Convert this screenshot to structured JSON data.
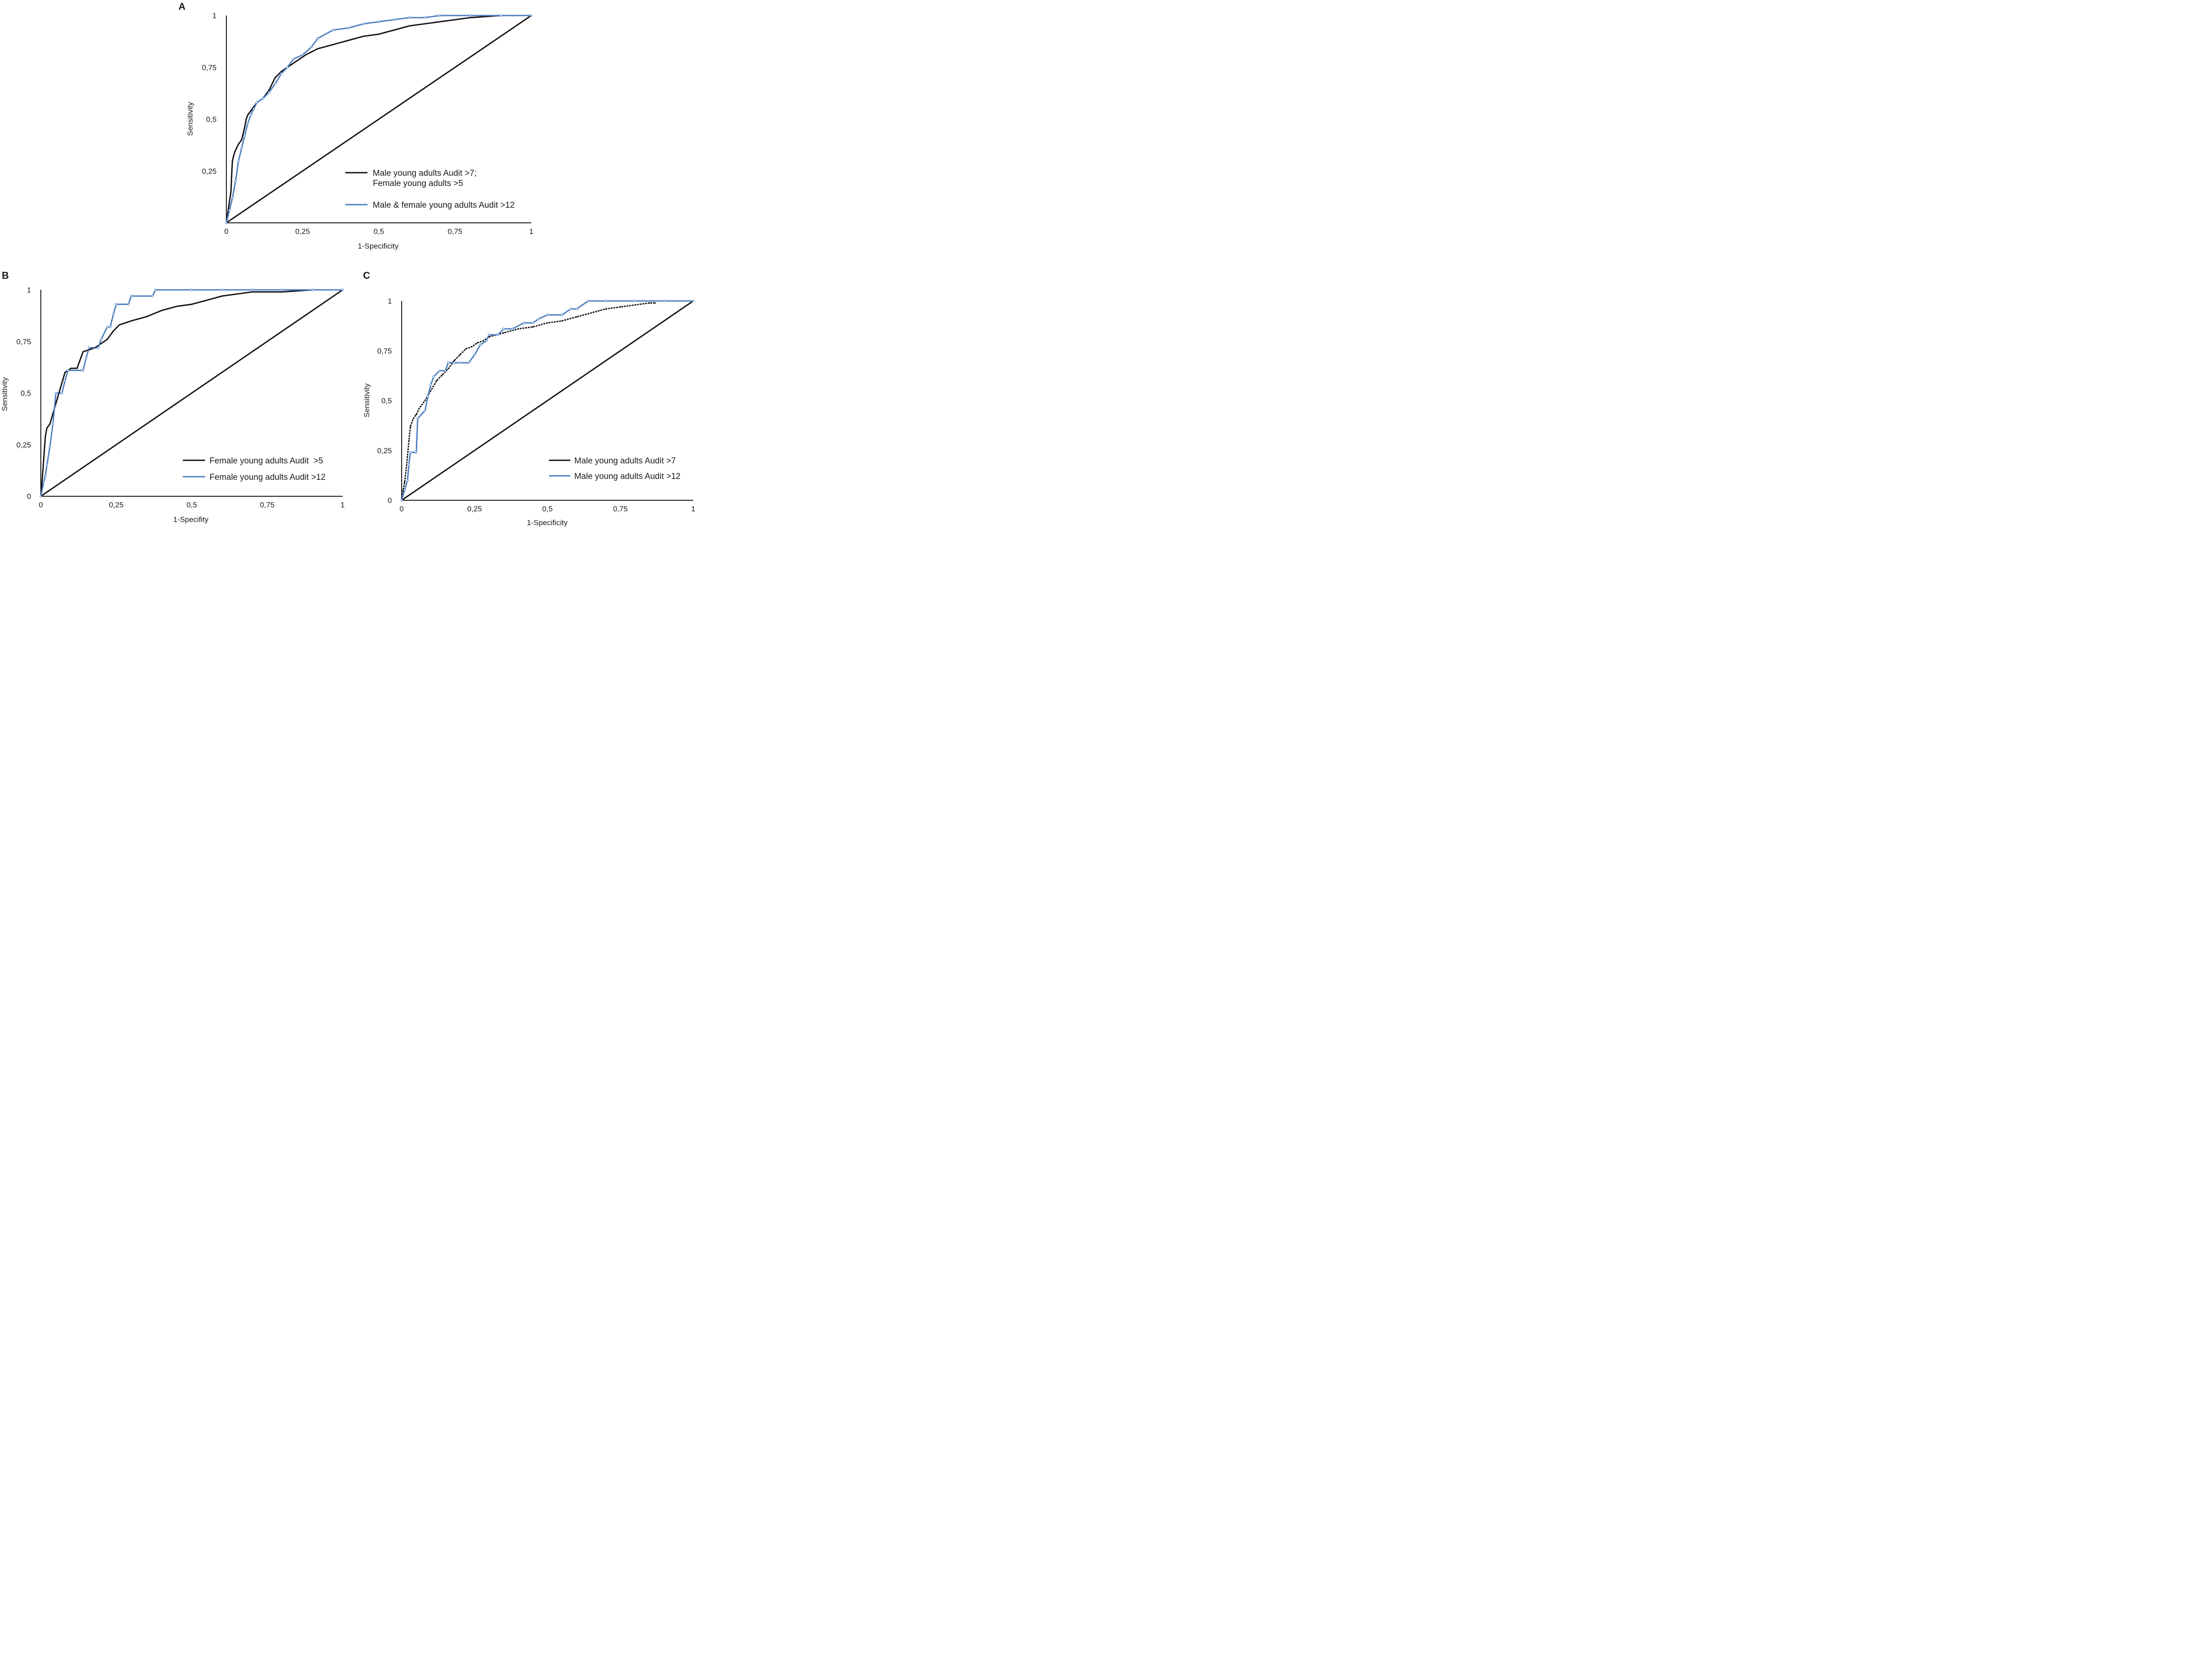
{
  "colors": {
    "series1": "#111111",
    "series2": "#4a7dbf",
    "axis": "#111111",
    "diagonal": "#111111"
  },
  "chart_data": [
    {
      "type": "line",
      "panel": "A",
      "xlabel": "1-Specificity",
      "ylabel": "Sensitivity",
      "xlim": [
        0,
        1
      ],
      "ylim": [
        0,
        1
      ],
      "xticks": [
        {
          "v": 0,
          "label": "0"
        },
        {
          "v": 0.25,
          "label": "0,25"
        },
        {
          "v": 0.5,
          "label": "0,5"
        },
        {
          "v": 0.75,
          "label": "0,75"
        },
        {
          "v": 1,
          "label": "1"
        }
      ],
      "yticks": [
        {
          "v": 0.25,
          "label": "0,25"
        },
        {
          "v": 0.5,
          "label": "0,5"
        },
        {
          "v": 0.75,
          "label": "0,75"
        },
        {
          "v": 1,
          "label": "1"
        }
      ],
      "legend_position": "bottom-right",
      "series": [
        {
          "name": "Male young adults Audit >7;",
          "name_line2": "Female young adults >5",
          "color": "#111111",
          "x": [
            0,
            0.005,
            0.01,
            0.015,
            0.018,
            0.02,
            0.025,
            0.03,
            0.04,
            0.05,
            0.055,
            0.06,
            0.065,
            0.07,
            0.08,
            0.09,
            0.1,
            0.12,
            0.14,
            0.16,
            0.18,
            0.2,
            0.22,
            0.24,
            0.26,
            0.3,
            0.35,
            0.4,
            0.45,
            0.5,
            0.55,
            0.6,
            0.65,
            0.7,
            0.8,
            0.9,
            1.0
          ],
          "y": [
            0,
            0.05,
            0.1,
            0.15,
            0.25,
            0.3,
            0.33,
            0.35,
            0.38,
            0.4,
            0.43,
            0.46,
            0.5,
            0.52,
            0.54,
            0.56,
            0.58,
            0.6,
            0.64,
            0.7,
            0.73,
            0.75,
            0.77,
            0.79,
            0.81,
            0.84,
            0.86,
            0.88,
            0.9,
            0.91,
            0.93,
            0.95,
            0.96,
            0.97,
            0.99,
            1.0,
            1.0
          ]
        },
        {
          "name": "Male & female young adults Audit >12",
          "color": "#4a7dbf",
          "x": [
            0,
            0.01,
            0.02,
            0.03,
            0.04,
            0.05,
            0.06,
            0.07,
            0.08,
            0.09,
            0.1,
            0.12,
            0.14,
            0.16,
            0.18,
            0.2,
            0.22,
            0.25,
            0.28,
            0.3,
            0.35,
            0.4,
            0.45,
            0.5,
            0.55,
            0.6,
            0.65,
            0.7,
            0.8,
            0.9,
            1.0
          ],
          "y": [
            0,
            0.06,
            0.12,
            0.2,
            0.3,
            0.36,
            0.42,
            0.48,
            0.52,
            0.55,
            0.58,
            0.6,
            0.63,
            0.67,
            0.72,
            0.75,
            0.79,
            0.81,
            0.85,
            0.89,
            0.93,
            0.94,
            0.96,
            0.97,
            0.98,
            0.99,
            0.99,
            1.0,
            1.0,
            1.0,
            1.0
          ]
        }
      ]
    },
    {
      "type": "line",
      "panel": "B",
      "xlabel": "1-Specifity",
      "ylabel": "Sensitivity",
      "xlim": [
        0,
        1
      ],
      "ylim": [
        0,
        1
      ],
      "xticks": [
        {
          "v": 0,
          "label": "0"
        },
        {
          "v": 0.25,
          "label": "0,25"
        },
        {
          "v": 0.5,
          "label": "0,5"
        },
        {
          "v": 0.75,
          "label": "0,75"
        },
        {
          "v": 1,
          "label": "1"
        }
      ],
      "yticks": [
        {
          "v": 0,
          "label": "0"
        },
        {
          "v": 0.25,
          "label": "0,25"
        },
        {
          "v": 0.5,
          "label": "0,5"
        },
        {
          "v": 0.75,
          "label": "0,75"
        },
        {
          "v": 1,
          "label": "1"
        }
      ],
      "legend_position": "bottom-right",
      "series": [
        {
          "name": "Female young adults Audit  >5",
          "color": "#111111",
          "x": [
            0,
            0.005,
            0.01,
            0.015,
            0.02,
            0.03,
            0.04,
            0.05,
            0.06,
            0.07,
            0.08,
            0.1,
            0.12,
            0.14,
            0.16,
            0.18,
            0.2,
            0.22,
            0.24,
            0.26,
            0.28,
            0.3,
            0.35,
            0.4,
            0.45,
            0.5,
            0.55,
            0.6,
            0.65,
            0.7,
            0.8,
            0.9,
            1.0
          ],
          "y": [
            0,
            0.09,
            0.19,
            0.29,
            0.33,
            0.35,
            0.4,
            0.45,
            0.5,
            0.55,
            0.6,
            0.62,
            0.62,
            0.7,
            0.71,
            0.72,
            0.74,
            0.76,
            0.8,
            0.83,
            0.84,
            0.85,
            0.87,
            0.9,
            0.92,
            0.93,
            0.95,
            0.97,
            0.98,
            0.99,
            0.99,
            1.0,
            1.0
          ]
        },
        {
          "name": "Female young adults Audit >12",
          "color": "#4a7dbf",
          "x": [
            0,
            0.01,
            0.015,
            0.02,
            0.03,
            0.04,
            0.05,
            0.07,
            0.08,
            0.09,
            0.14,
            0.15,
            0.16,
            0.19,
            0.2,
            0.22,
            0.23,
            0.24,
            0.25,
            0.29,
            0.3,
            0.37,
            0.38,
            0.5,
            0.6,
            0.7,
            0.8,
            0.9,
            1.0
          ],
          "y": [
            0,
            0.07,
            0.1,
            0.15,
            0.24,
            0.35,
            0.5,
            0.5,
            0.56,
            0.61,
            0.61,
            0.67,
            0.72,
            0.72,
            0.76,
            0.82,
            0.82,
            0.88,
            0.93,
            0.93,
            0.97,
            0.97,
            1.0,
            1.0,
            1.0,
            1.0,
            1.0,
            1.0,
            1.0
          ]
        }
      ]
    },
    {
      "type": "line",
      "panel": "C",
      "xlabel": "1-Specificity",
      "ylabel": "Sensitivity",
      "xlim": [
        0,
        1
      ],
      "ylim": [
        0,
        1
      ],
      "xticks": [
        {
          "v": 0,
          "label": "0"
        },
        {
          "v": 0.25,
          "label": "0,25"
        },
        {
          "v": 0.5,
          "label": "0,5"
        },
        {
          "v": 0.75,
          "label": "0,75"
        },
        {
          "v": 1,
          "label": "1"
        }
      ],
      "yticks": [
        {
          "v": 0,
          "label": "0"
        },
        {
          "v": 0.25,
          "label": "0,25"
        },
        {
          "v": 0.5,
          "label": "0,5"
        },
        {
          "v": 0.75,
          "label": "0,75"
        },
        {
          "v": 1,
          "label": "1"
        }
      ],
      "legend_position": "bottom-right",
      "series": [
        {
          "name": "Male young adults Audit >7",
          "color": "#111111",
          "x": [
            0,
            0.005,
            0.01,
            0.015,
            0.02,
            0.025,
            0.03,
            0.04,
            0.05,
            0.06,
            0.08,
            0.1,
            0.12,
            0.14,
            0.16,
            0.18,
            0.2,
            0.22,
            0.24,
            0.26,
            0.28,
            0.3,
            0.35,
            0.4,
            0.45,
            0.5,
            0.55,
            0.6,
            0.65,
            0.7,
            0.75,
            0.8,
            0.85,
            0.87
          ],
          "y": [
            0,
            0.05,
            0.09,
            0.15,
            0.22,
            0.3,
            0.37,
            0.41,
            0.43,
            0.46,
            0.5,
            0.55,
            0.6,
            0.63,
            0.66,
            0.7,
            0.73,
            0.76,
            0.77,
            0.79,
            0.8,
            0.82,
            0.84,
            0.86,
            0.87,
            0.89,
            0.9,
            0.92,
            0.94,
            0.96,
            0.97,
            0.98,
            0.99,
            0.99
          ]
        },
        {
          "name": "Male young adults Audit >12",
          "color": "#4a7dbf",
          "x": [
            0,
            0.01,
            0.02,
            0.025,
            0.03,
            0.05,
            0.055,
            0.08,
            0.09,
            0.1,
            0.11,
            0.13,
            0.15,
            0.16,
            0.18,
            0.2,
            0.23,
            0.25,
            0.27,
            0.29,
            0.3,
            0.33,
            0.35,
            0.38,
            0.42,
            0.45,
            0.47,
            0.5,
            0.55,
            0.58,
            0.6,
            0.64,
            0.7,
            0.8,
            0.9,
            1.0
          ],
          "y": [
            0,
            0.05,
            0.1,
            0.18,
            0.24,
            0.24,
            0.41,
            0.45,
            0.52,
            0.58,
            0.62,
            0.65,
            0.65,
            0.69,
            0.69,
            0.69,
            0.69,
            0.73,
            0.78,
            0.8,
            0.83,
            0.83,
            0.86,
            0.86,
            0.89,
            0.89,
            0.91,
            0.93,
            0.93,
            0.96,
            0.96,
            1.0,
            1.0,
            1.0,
            1.0,
            1.0
          ]
        }
      ]
    }
  ]
}
